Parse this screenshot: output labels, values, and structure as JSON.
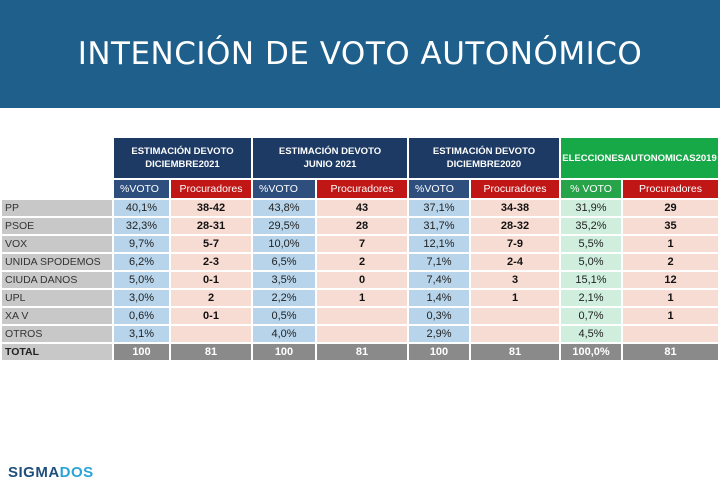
{
  "header": {
    "title": "INTENCIÓN DE VOTO AUTONÓMICO"
  },
  "logo": {
    "part1": "SIGMA",
    "part2": "DOS"
  },
  "colors": {
    "banner": "#1f5f8b",
    "blue_header": "#1c3a63",
    "green_header": "#17a847",
    "red_sub": "#c01616"
  },
  "chart_data": {
    "type": "table",
    "groups": [
      {
        "title_line1": "ESTIMACIÓN DEVOTO",
        "title_line2": "DICIEMBRE2021",
        "pct_label": "%VOTO",
        "proc_label": "Procuradores"
      },
      {
        "title_line1": "ESTIMACIÓN DEVOTO",
        "title_line2": "JUNIO 2021",
        "pct_label": "%VOTO",
        "proc_label": "Procuradores"
      },
      {
        "title_line1": "ESTIMACIÓN DEVOTO",
        "title_line2": "DICIEMBRE2020",
        "pct_label": "%VOTO",
        "proc_label": "Procuradores"
      },
      {
        "title_line1": "ELECCIONESAUTONOMICAS2019",
        "title_line2": "",
        "pct_label": "% VOTO",
        "proc_label": "Procuradores"
      }
    ],
    "rows": [
      {
        "party": "PP",
        "values": [
          "40,1%",
          "38-42",
          "43,8%",
          "43",
          "37,1%",
          "34-38",
          "31,9%",
          "29"
        ]
      },
      {
        "party": "PSOE",
        "values": [
          "32,3%",
          "28-31",
          "29,5%",
          "28",
          "31,7%",
          "28-32",
          "35,2%",
          "35"
        ]
      },
      {
        "party": "VOX",
        "values": [
          "9,7%",
          "5-7",
          "10,0%",
          "7",
          "12,1%",
          "7-9",
          "5,5%",
          "1"
        ]
      },
      {
        "party": "UNIDA SPODEMOS",
        "values": [
          "6,2%",
          "2-3",
          "6,5%",
          "2",
          "7,1%",
          "2-4",
          "5,0%",
          "2"
        ]
      },
      {
        "party": "CIUDA DANOS",
        "values": [
          "5,0%",
          "0-1",
          "3,5%",
          "0",
          "7,4%",
          "3",
          "15,1%",
          "12"
        ]
      },
      {
        "party": "UPL",
        "values": [
          "3,0%",
          "2",
          "2,2%",
          "1",
          "1,4%",
          "1",
          "2,1%",
          "1"
        ]
      },
      {
        "party": "XA V",
        "values": [
          "0,6%",
          "0-1",
          "0,5%",
          "",
          "0,3%",
          "",
          "0,7%",
          "1"
        ]
      },
      {
        "party": "OTROS",
        "values": [
          "3,1%",
          "",
          "4,0%",
          "",
          "2,9%",
          "",
          "4,5%",
          ""
        ]
      }
    ],
    "total": {
      "label": "TOTAL",
      "values": [
        "100",
        "81",
        "100",
        "81",
        "100",
        "81",
        "100,0%",
        "81"
      ]
    }
  }
}
